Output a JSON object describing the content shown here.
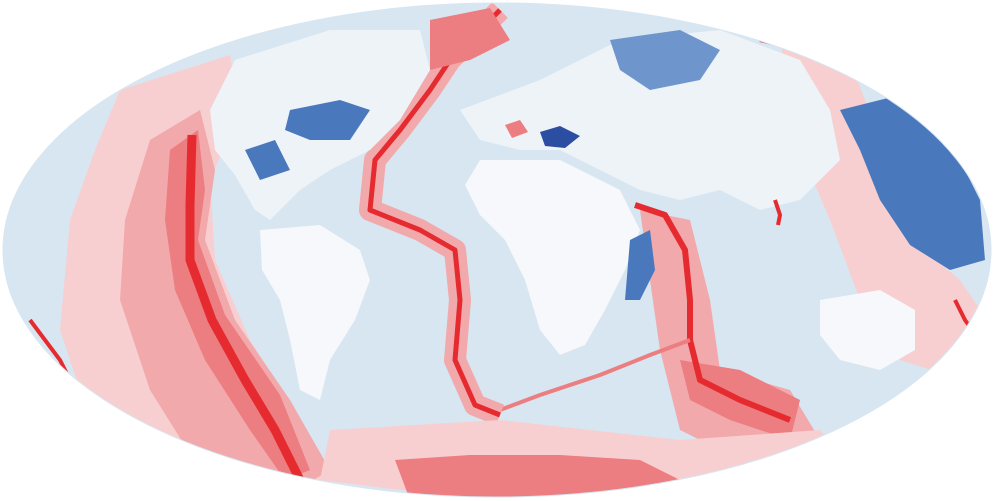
{
  "map": {
    "projection": "mollweide",
    "theme": "crustal-age-global",
    "colors": {
      "background": "#ffffff",
      "ocean_base": "#d7e6f1",
      "ocean_light": "#e8f0f7",
      "land_base": "#eef3f8",
      "land_white": "#f6f8fb",
      "blue_mid": "#6e95cc",
      "blue_dark": "#4a78bd",
      "blue_deep": "#2b4ea3",
      "pink_pale": "#f8cfd0",
      "pink_light": "#f2a9ab",
      "red_mid": "#ec7d80",
      "red_strong": "#e52b2f"
    },
    "legend": null
  }
}
